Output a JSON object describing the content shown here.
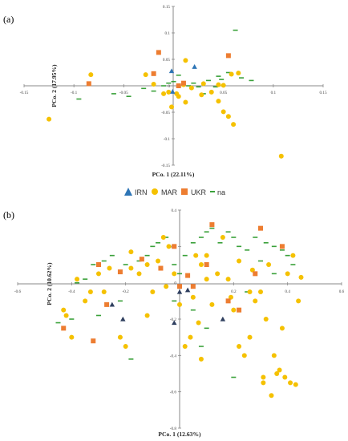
{
  "colors": {
    "IRN": "#2e75b6",
    "MAR": "#f5c100",
    "UKR": "#ed7d31",
    "na": "#3aa13a",
    "IRN_b": "#2f3f5f"
  },
  "chart_data": [
    {
      "panel": "(a)",
      "type": "scatter",
      "xlabel": "PCo. 1  (22.11%)",
      "ylabel": "PCo. 2 (17.95%)",
      "xlim": [
        -0.15,
        0.15
      ],
      "ylim": [
        -0.15,
        0.15
      ],
      "xticks": [
        "-0.15",
        "-0.1",
        "-0.05",
        "0",
        "0.05",
        "0.1",
        "0.15"
      ],
      "yticks": [
        "0.15",
        "0.1",
        "0.05",
        "0",
        "-0.05",
        "-0.1",
        "-0.15"
      ],
      "legend": {
        "position": "bottom",
        "entries": [
          "IRN",
          "MAR",
          "UKR",
          "na"
        ]
      },
      "series": [
        {
          "name": "IRN",
          "marker": "triangle",
          "points": [
            [
              0.021,
              0.036
            ],
            [
              -0.002,
              0.028
            ],
            [
              -0.001,
              -0.011
            ]
          ]
        },
        {
          "name": "MAR",
          "marker": "circle",
          "points": [
            [
              -0.125,
              -0.063
            ],
            [
              -0.083,
              0.021
            ],
            [
              -0.028,
              0.021
            ],
            [
              -0.02,
              0.003
            ],
            [
              -0.01,
              -0.015
            ],
            [
              0.003,
              -0.015
            ],
            [
              0.012,
              -0.031
            ],
            [
              0.018,
              -0.004
            ],
            [
              0.03,
              0.004
            ],
            [
              0.038,
              -0.012
            ],
            [
              0.045,
              -0.029
            ],
            [
              0.05,
              -0.049
            ],
            [
              0.055,
              -0.058
            ],
            [
              0.06,
              -0.073
            ],
            [
              0.058,
              0.022
            ],
            [
              0.065,
              0.024
            ],
            [
              0.01,
              0.002
            ],
            [
              -0.002,
              -0.04
            ],
            [
              -0.005,
              -0.012
            ],
            [
              0.05,
              0.001
            ],
            [
              0.108,
              -0.133
            ],
            [
              0.012,
              0.048
            ],
            [
              0.005,
              -0.02
            ],
            [
              0.028,
              -0.017
            ],
            [
              0.045,
              0.002
            ]
          ]
        },
        {
          "name": "UKR",
          "marker": "square",
          "points": [
            [
              -0.015,
              0.063
            ],
            [
              -0.085,
              0.004
            ],
            [
              -0.02,
              0.023
            ],
            [
              0.055,
              0.057
            ],
            [
              0.01,
              0.005
            ],
            [
              0.005,
              0.0
            ]
          ]
        },
        {
          "name": "na",
          "marker": "dash",
          "points": [
            [
              -0.095,
              -0.025
            ],
            [
              -0.045,
              -0.02
            ],
            [
              -0.06,
              -0.015
            ],
            [
              -0.02,
              -0.01
            ],
            [
              -0.01,
              0.0
            ],
            [
              -0.005,
              0.005
            ],
            [
              0.0,
              0.008
            ],
            [
              0.01,
              0.002
            ],
            [
              0.015,
              0.0
            ],
            [
              0.02,
              0.005
            ],
            [
              0.025,
              -0.002
            ],
            [
              0.035,
              0.01
            ],
            [
              0.045,
              0.018
            ],
            [
              0.062,
              0.105
            ],
            [
              0.068,
              0.015
            ],
            [
              0.078,
              0.01
            ],
            [
              0.005,
              0.02
            ],
            [
              -0.03,
              -0.005
            ],
            [
              0.042,
              -0.002
            ],
            [
              0.055,
              0.025
            ],
            [
              0.048,
              0.012
            ],
            [
              0.03,
              -0.015
            ]
          ]
        }
      ]
    },
    {
      "panel": "(b)",
      "type": "scatter",
      "xlabel": "PCo. 1 (12.63%)",
      "ylabel": "PCo. 2 (10.62%)",
      "xlim": [
        -0.6,
        0.6
      ],
      "ylim": [
        -0.8,
        0.4
      ],
      "xticks": [
        "-0.6",
        "-0.4",
        "-0.2",
        "0",
        "0.2",
        "0.4",
        "0.6"
      ],
      "yticks": [
        "0.4",
        "0.2",
        "0",
        "-0.2",
        "-0.4",
        "-0.6",
        "-0.8"
      ],
      "series": [
        {
          "name": "IRN",
          "marker": "triangle",
          "points": [
            [
              -0.25,
              -0.12
            ],
            [
              -0.21,
              -0.2
            ],
            [
              0.0,
              -0.05
            ],
            [
              0.03,
              -0.04
            ],
            [
              -0.02,
              -0.22
            ],
            [
              0.16,
              -0.2
            ]
          ]
        },
        {
          "name": "MAR",
          "marker": "circle",
          "points": [
            [
              -0.43,
              -0.15
            ],
            [
              -0.42,
              -0.18
            ],
            [
              -0.4,
              -0.3
            ],
            [
              -0.35,
              -0.1
            ],
            [
              -0.3,
              0.05
            ],
            [
              -0.28,
              -0.05
            ],
            [
              -0.22,
              -0.3
            ],
            [
              -0.2,
              -0.35
            ],
            [
              -0.18,
              0.08
            ],
            [
              -0.15,
              0.05
            ],
            [
              -0.12,
              0.1
            ],
            [
              -0.1,
              -0.05
            ],
            [
              -0.08,
              0.12
            ],
            [
              -0.06,
              0.25
            ],
            [
              -0.04,
              0.2
            ],
            [
              -0.02,
              0.05
            ],
            [
              0.0,
              -0.12
            ],
            [
              0.02,
              -0.35
            ],
            [
              0.04,
              -0.3
            ],
            [
              0.06,
              0.15
            ],
            [
              0.08,
              0.1
            ],
            [
              0.1,
              0.02
            ],
            [
              0.12,
              -0.12
            ],
            [
              0.14,
              0.05
            ],
            [
              0.16,
              0.25
            ],
            [
              0.18,
              0.02
            ],
            [
              0.2,
              -0.15
            ],
            [
              0.22,
              -0.35
            ],
            [
              0.24,
              -0.4
            ],
            [
              0.26,
              -0.3
            ],
            [
              0.28,
              -0.1
            ],
            [
              0.3,
              -0.05
            ],
            [
              0.31,
              -0.52
            ],
            [
              0.31,
              -0.55
            ],
            [
              0.32,
              -0.2
            ],
            [
              0.33,
              0.1
            ],
            [
              0.34,
              -0.62
            ],
            [
              0.35,
              -0.4
            ],
            [
              0.36,
              -0.5
            ],
            [
              0.37,
              -0.48
            ],
            [
              0.38,
              -0.25
            ],
            [
              0.39,
              -0.52
            ],
            [
              0.4,
              0.05
            ],
            [
              0.41,
              -0.55
            ],
            [
              0.42,
              0.15
            ],
            [
              0.43,
              -0.56
            ],
            [
              0.44,
              -0.1
            ],
            [
              0.45,
              0.03
            ],
            [
              -0.33,
              -0.05
            ],
            [
              -0.26,
              0.08
            ],
            [
              0.08,
              -0.42
            ],
            [
              0.07,
              -0.22
            ],
            [
              0.27,
              0.07
            ],
            [
              -0.18,
              0.17
            ],
            [
              -0.05,
              -0.02
            ],
            [
              0.1,
              0.15
            ],
            [
              0.22,
              0.12
            ],
            [
              -0.38,
              0.02
            ],
            [
              0.19,
              -0.08
            ],
            [
              0.26,
              -0.05
            ],
            [
              -0.12,
              -0.18
            ],
            [
              0.05,
              -0.08
            ]
          ]
        },
        {
          "name": "UKR",
          "marker": "square",
          "points": [
            [
              -0.43,
              -0.25
            ],
            [
              -0.3,
              0.1
            ],
            [
              -0.32,
              -0.32
            ],
            [
              -0.27,
              -0.12
            ],
            [
              -0.22,
              0.06
            ],
            [
              -0.14,
              0.13
            ],
            [
              -0.07,
              0.08
            ],
            [
              -0.02,
              0.2
            ],
            [
              0.03,
              0.04
            ],
            [
              0.05,
              -0.02
            ],
            [
              0.1,
              0.1
            ],
            [
              0.12,
              0.32
            ],
            [
              0.22,
              -0.15
            ],
            [
              0.3,
              0.3
            ],
            [
              0.28,
              0.05
            ],
            [
              0.38,
              0.2
            ],
            [
              0.18,
              -0.1
            ],
            [
              0.0,
              -0.02
            ]
          ]
        },
        {
          "name": "na",
          "marker": "dash",
          "points": [
            [
              -0.45,
              -0.22
            ],
            [
              -0.4,
              -0.2
            ],
            [
              -0.38,
              0.0
            ],
            [
              -0.35,
              0.02
            ],
            [
              -0.32,
              0.1
            ],
            [
              -0.28,
              0.12
            ],
            [
              -0.25,
              0.15
            ],
            [
              -0.2,
              0.1
            ],
            [
              -0.18,
              -0.42
            ],
            [
              -0.15,
              0.12
            ],
            [
              -0.12,
              0.15
            ],
            [
              -0.1,
              0.2
            ],
            [
              -0.08,
              0.22
            ],
            [
              -0.05,
              0.25
            ],
            [
              -0.02,
              0.1
            ],
            [
              0.0,
              0.05
            ],
            [
              0.02,
              0.15
            ],
            [
              0.05,
              0.22
            ],
            [
              0.08,
              0.25
            ],
            [
              0.1,
              0.28
            ],
            [
              0.12,
              0.3
            ],
            [
              0.15,
              0.22
            ],
            [
              0.18,
              0.28
            ],
            [
              0.2,
              0.25
            ],
            [
              0.22,
              0.2
            ],
            [
              0.25,
              0.18
            ],
            [
              0.28,
              0.25
            ],
            [
              0.3,
              0.12
            ],
            [
              0.32,
              0.22
            ],
            [
              0.35,
              0.2
            ],
            [
              0.38,
              0.18
            ],
            [
              0.4,
              0.15
            ],
            [
              0.42,
              0.1
            ],
            [
              -0.3,
              -0.18
            ],
            [
              -0.22,
              -0.1
            ],
            [
              0.05,
              -0.15
            ],
            [
              0.1,
              -0.25
            ],
            [
              0.2,
              -0.52
            ],
            [
              0.25,
              -0.05
            ],
            [
              0.35,
              0.05
            ],
            [
              0.08,
              -0.35
            ],
            [
              -0.02,
              -0.1
            ]
          ]
        }
      ]
    }
  ]
}
